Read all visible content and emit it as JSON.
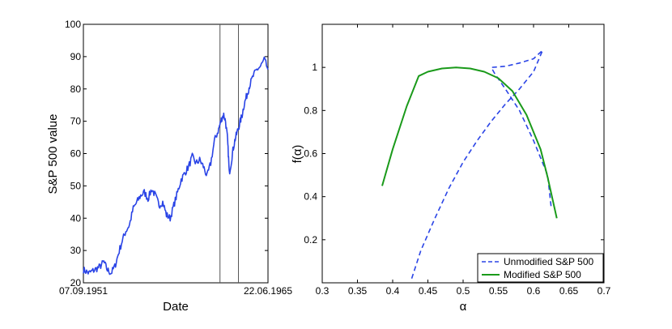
{
  "chart_data": [
    {
      "type": "line",
      "xlabel": "Date",
      "ylabel": "S&P 500 value",
      "x_range": [
        "07.09.1951",
        "22.06.1965"
      ],
      "x_tick_labels": [
        "07.09.1951",
        "22.06.1965"
      ],
      "ylim": [
        20,
        100
      ],
      "y_ticks": [
        20,
        30,
        40,
        50,
        60,
        70,
        80,
        90,
        100
      ],
      "vertical_lines_fraction_of_x_range": [
        0.74,
        0.84
      ],
      "color": "#2a44e6",
      "grid": false,
      "series": [
        {
          "x_fraction": [
            0.0,
            0.03,
            0.06,
            0.09,
            0.11,
            0.13,
            0.15,
            0.17,
            0.19,
            0.21,
            0.23,
            0.25,
            0.27,
            0.29,
            0.31,
            0.33,
            0.35,
            0.37,
            0.39,
            0.41,
            0.43,
            0.45,
            0.47,
            0.49,
            0.51,
            0.53,
            0.55,
            0.57,
            0.59,
            0.61,
            0.63,
            0.65,
            0.67,
            0.69,
            0.71,
            0.73,
            0.74,
            0.75,
            0.76,
            0.77,
            0.78,
            0.785,
            0.79,
            0.8,
            0.81,
            0.82,
            0.83,
            0.84,
            0.85,
            0.86,
            0.87,
            0.88,
            0.89,
            0.9,
            0.92,
            0.94,
            0.96,
            0.98,
            1.0
          ],
          "values": [
            24,
            23,
            24,
            25,
            26.5,
            24,
            23,
            25,
            29,
            33,
            36,
            38,
            43,
            45,
            47,
            48,
            46,
            49,
            47,
            44,
            45,
            41,
            40,
            44,
            48,
            52,
            54,
            56,
            59,
            57,
            58,
            56,
            53,
            57,
            64,
            67,
            69,
            71,
            72,
            70,
            65,
            60,
            54,
            57,
            61,
            64,
            66,
            68,
            70,
            72,
            75,
            77,
            79,
            81,
            84,
            86,
            87,
            89,
            86
          ]
        }
      ]
    },
    {
      "type": "line",
      "xlabel": "α",
      "ylabel": "f(α)",
      "xlim": [
        0.3,
        0.7
      ],
      "ylim": [
        0,
        1.2
      ],
      "x_ticks": [
        0.3,
        0.35,
        0.4,
        0.45,
        0.5,
        0.55,
        0.6,
        0.65,
        0.7
      ],
      "x_tick_labels": [
        "0.3",
        "0.35",
        "0.4",
        "0.45",
        "0.5",
        "0.55",
        "0.6",
        "0.65",
        "0.7"
      ],
      "y_ticks": [
        0.2,
        0.4,
        0.6,
        0.8,
        1
      ],
      "y_tick_labels": [
        "0.2",
        "0.4",
        "0.6",
        "0.8",
        "1"
      ],
      "grid": false,
      "legend_position": "bottom-right",
      "series": [
        {
          "name": "Unmodified S&P 500",
          "style": "dashed",
          "color": "#2a44e6",
          "points": [
            [
              0.427,
              0.02
            ],
            [
              0.44,
              0.15
            ],
            [
              0.46,
              0.3
            ],
            [
              0.48,
              0.44
            ],
            [
              0.5,
              0.56
            ],
            [
              0.52,
              0.66
            ],
            [
              0.54,
              0.75
            ],
            [
              0.56,
              0.83
            ],
            [
              0.58,
              0.9
            ],
            [
              0.6,
              0.98
            ],
            [
              0.613,
              1.08
            ],
            [
              0.6,
              1.04
            ],
            [
              0.58,
              1.02
            ],
            [
              0.56,
              1.005
            ],
            [
              0.54,
              1.0
            ],
            [
              0.545,
              0.97
            ],
            [
              0.56,
              0.9
            ],
            [
              0.58,
              0.8
            ],
            [
              0.6,
              0.66
            ],
            [
              0.62,
              0.5
            ],
            [
              0.625,
              0.35
            ]
          ]
        },
        {
          "name": "Modified S&P 500",
          "style": "solid",
          "color": "#1a9a1a",
          "points": [
            [
              0.385,
              0.45
            ],
            [
              0.4,
              0.62
            ],
            [
              0.42,
              0.82
            ],
            [
              0.437,
              0.96
            ],
            [
              0.45,
              0.98
            ],
            [
              0.47,
              0.995
            ],
            [
              0.49,
              1.0
            ],
            [
              0.51,
              0.995
            ],
            [
              0.53,
              0.98
            ],
            [
              0.55,
              0.95
            ],
            [
              0.57,
              0.89
            ],
            [
              0.59,
              0.78
            ],
            [
              0.61,
              0.62
            ],
            [
              0.62,
              0.49
            ],
            [
              0.633,
              0.3
            ]
          ]
        }
      ]
    }
  ]
}
